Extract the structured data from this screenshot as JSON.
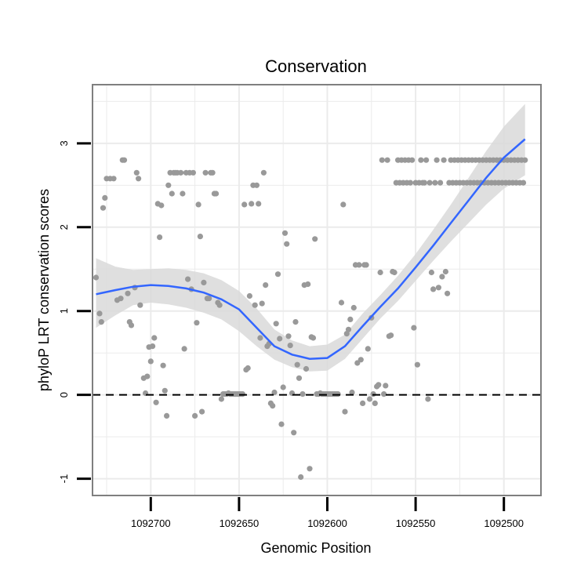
{
  "chart_data": {
    "type": "scatter",
    "title": "Conservation",
    "xlabel": "Genomic Position",
    "ylabel": "phyloP LRT conservation scores",
    "xlim": [
      1092733,
      1092479
    ],
    "ylim": [
      -1.2,
      3.7
    ],
    "x_reversed": true,
    "xticks": [
      1092700,
      1092650,
      1092600,
      1092550,
      1092500
    ],
    "xtick_labels": [
      "1092700",
      "1092650",
      "1092600",
      "1092550",
      "1092500"
    ],
    "yticks": [
      -1,
      0,
      1,
      2,
      3
    ],
    "ytick_labels": [
      "-1",
      "0",
      "1",
      "2",
      "3"
    ],
    "reference_line": {
      "y": 0,
      "style": "dashed"
    },
    "colors": {
      "points": "#999999",
      "smooth": "#3366ff",
      "band": "#d9d9d9",
      "frame": "#7f7f7f",
      "grid": "#ebebeb"
    },
    "points": [
      [
        1092731,
        1.4
      ],
      [
        1092729,
        0.97
      ],
      [
        1092728,
        0.87
      ],
      [
        1092727,
        2.23
      ],
      [
        1092726,
        2.35
      ],
      [
        1092725,
        2.58
      ],
      [
        1092723,
        2.58
      ],
      [
        1092721,
        2.58
      ],
      [
        1092719,
        1.13
      ],
      [
        1092717,
        1.15
      ],
      [
        1092716,
        2.8
      ],
      [
        1092715,
        2.8
      ],
      [
        1092713,
        1.21
      ],
      [
        1092712,
        0.87
      ],
      [
        1092711,
        0.83
      ],
      [
        1092709,
        1.28
      ],
      [
        1092708,
        2.65
      ],
      [
        1092707,
        2.58
      ],
      [
        1092706,
        1.07
      ],
      [
        1092704,
        0.2
      ],
      [
        1092703,
        0.02
      ],
      [
        1092702,
        0.22
      ],
      [
        1092701,
        0.57
      ],
      [
        1092700,
        0.4
      ],
      [
        1092699,
        0.58
      ],
      [
        1092698,
        0.68
      ],
      [
        1092697,
        -0.09
      ],
      [
        1092696,
        2.28
      ],
      [
        1092695,
        1.88
      ],
      [
        1092694,
        2.26
      ],
      [
        1092693,
        0.35
      ],
      [
        1092692,
        0.05
      ],
      [
        1092691,
        -0.25
      ],
      [
        1092690,
        2.5
      ],
      [
        1092689,
        2.65
      ],
      [
        1092688,
        2.4
      ],
      [
        1092687,
        2.65
      ],
      [
        1092686,
        2.65
      ],
      [
        1092685,
        2.65
      ],
      [
        1092683,
        2.65
      ],
      [
        1092682,
        2.4
      ],
      [
        1092681,
        0.55
      ],
      [
        1092680,
        2.65
      ],
      [
        1092679,
        1.38
      ],
      [
        1092678,
        2.65
      ],
      [
        1092677,
        1.26
      ],
      [
        1092676,
        2.65
      ],
      [
        1092675,
        -0.25
      ],
      [
        1092674,
        0.86
      ],
      [
        1092673,
        2.27
      ],
      [
        1092672,
        1.89
      ],
      [
        1092671,
        -0.2
      ],
      [
        1092670,
        1.34
      ],
      [
        1092669,
        2.65
      ],
      [
        1092668,
        1.15
      ],
      [
        1092667,
        1.15
      ],
      [
        1092666,
        2.65
      ],
      [
        1092665,
        2.65
      ],
      [
        1092664,
        2.4
      ],
      [
        1092663,
        2.4
      ],
      [
        1092662,
        1.1
      ],
      [
        1092661,
        1.07
      ],
      [
        1092660,
        -0.05
      ],
      [
        1092659,
        0.01
      ],
      [
        1092658,
        0.01
      ],
      [
        1092657,
        0.01
      ],
      [
        1092656,
        0.02
      ],
      [
        1092655,
        0.01
      ],
      [
        1092654,
        0.01
      ],
      [
        1092653,
        0.01
      ],
      [
        1092652,
        0.01
      ],
      [
        1092651,
        0.01
      ],
      [
        1092650,
        0.01
      ],
      [
        1092649,
        0.01
      ],
      [
        1092648,
        0.01
      ],
      [
        1092647,
        2.27
      ],
      [
        1092646,
        0.3
      ],
      [
        1092645,
        0.32
      ],
      [
        1092644,
        1.18
      ],
      [
        1092643,
        2.28
      ],
      [
        1092642,
        2.5
      ],
      [
        1092641,
        1.07
      ],
      [
        1092640,
        2.5
      ],
      [
        1092639,
        2.28
      ],
      [
        1092638,
        0.68
      ],
      [
        1092637,
        1.09
      ],
      [
        1092636,
        2.65
      ],
      [
        1092635,
        1.31
      ],
      [
        1092634,
        0.58
      ],
      [
        1092633,
        0.61
      ],
      [
        1092632,
        -0.1
      ],
      [
        1092631,
        -0.13
      ],
      [
        1092630,
        0.03
      ],
      [
        1092629,
        0.85
      ],
      [
        1092628,
        1.44
      ],
      [
        1092627,
        0.67
      ],
      [
        1092626,
        -0.35
      ],
      [
        1092625,
        0.09
      ],
      [
        1092624,
        1.93
      ],
      [
        1092623,
        1.8
      ],
      [
        1092622,
        0.7
      ],
      [
        1092621,
        0.59
      ],
      [
        1092620,
        0.02
      ],
      [
        1092619,
        -0.45
      ],
      [
        1092618,
        0.87
      ],
      [
        1092617,
        0.36
      ],
      [
        1092616,
        0.2
      ],
      [
        1092615,
        -0.98
      ],
      [
        1092614,
        0.01
      ],
      [
        1092613,
        1.31
      ],
      [
        1092612,
        0.31
      ],
      [
        1092611,
        1.32
      ],
      [
        1092610,
        -0.88
      ],
      [
        1092609,
        0.69
      ],
      [
        1092608,
        0.68
      ],
      [
        1092607,
        1.86
      ],
      [
        1092606,
        0.01
      ],
      [
        1092605,
        0.01
      ],
      [
        1092604,
        0.02
      ],
      [
        1092603,
        0.01
      ],
      [
        1092602,
        0.01
      ],
      [
        1092601,
        0.01
      ],
      [
        1092600,
        0.01
      ],
      [
        1092599,
        0.01
      ],
      [
        1092598,
        0.01
      ],
      [
        1092597,
        0.01
      ],
      [
        1092596,
        0.01
      ],
      [
        1092595,
        0.01
      ],
      [
        1092594,
        0.01
      ],
      [
        1092592,
        1.1
      ],
      [
        1092591,
        2.27
      ],
      [
        1092590,
        -0.2
      ],
      [
        1092589,
        0.73
      ],
      [
        1092588,
        0.78
      ],
      [
        1092587,
        0.9
      ],
      [
        1092586,
        0.03
      ],
      [
        1092585,
        1.04
      ],
      [
        1092584,
        1.55
      ],
      [
        1092583,
        0.38
      ],
      [
        1092582,
        1.55
      ],
      [
        1092581,
        0.42
      ],
      [
        1092580,
        -0.1
      ],
      [
        1092579,
        1.55
      ],
      [
        1092578,
        1.55
      ],
      [
        1092577,
        0.55
      ],
      [
        1092576,
        -0.05
      ],
      [
        1092575,
        0.92
      ],
      [
        1092574,
        0.01
      ],
      [
        1092573,
        -0.1
      ],
      [
        1092572,
        0.1
      ],
      [
        1092571,
        0.12
      ],
      [
        1092570,
        1.46
      ],
      [
        1092569,
        2.8
      ],
      [
        1092568,
        0.01
      ],
      [
        1092567,
        0.11
      ],
      [
        1092566,
        2.8
      ],
      [
        1092565,
        0.7
      ],
      [
        1092564,
        0.71
      ],
      [
        1092563,
        1.47
      ],
      [
        1092562,
        1.46
      ],
      [
        1092561,
        2.53
      ],
      [
        1092560,
        2.8
      ],
      [
        1092559,
        2.53
      ],
      [
        1092558,
        2.8
      ],
      [
        1092557,
        2.53
      ],
      [
        1092556,
        2.8
      ],
      [
        1092555,
        2.53
      ],
      [
        1092554,
        2.8
      ],
      [
        1092553,
        2.53
      ],
      [
        1092552,
        2.8
      ],
      [
        1092551,
        0.8
      ],
      [
        1092550,
        2.53
      ],
      [
        1092549,
        0.36
      ],
      [
        1092548,
        2.53
      ],
      [
        1092547,
        2.8
      ],
      [
        1092546,
        2.53
      ],
      [
        1092545,
        2.53
      ],
      [
        1092544,
        2.8
      ],
      [
        1092543,
        -0.05
      ],
      [
        1092542,
        2.53
      ],
      [
        1092541,
        1.46
      ],
      [
        1092540,
        1.26
      ],
      [
        1092539,
        2.53
      ],
      [
        1092538,
        2.8
      ],
      [
        1092537,
        1.28
      ],
      [
        1092536,
        2.53
      ],
      [
        1092535,
        1.41
      ],
      [
        1092534,
        2.8
      ],
      [
        1092533,
        1.47
      ],
      [
        1092532,
        1.21
      ],
      [
        1092531,
        2.53
      ],
      [
        1092530,
        2.8
      ],
      [
        1092529,
        2.53
      ],
      [
        1092528,
        2.8
      ],
      [
        1092527,
        2.53
      ],
      [
        1092526,
        2.8
      ],
      [
        1092525,
        2.53
      ],
      [
        1092524,
        2.8
      ],
      [
        1092523,
        2.53
      ],
      [
        1092522,
        2.8
      ],
      [
        1092521,
        2.53
      ],
      [
        1092520,
        2.8
      ],
      [
        1092519,
        2.53
      ],
      [
        1092518,
        2.8
      ],
      [
        1092517,
        2.53
      ],
      [
        1092516,
        2.8
      ],
      [
        1092515,
        2.53
      ],
      [
        1092514,
        2.8
      ],
      [
        1092513,
        2.53
      ],
      [
        1092512,
        2.8
      ],
      [
        1092511,
        2.53
      ],
      [
        1092510,
        2.8
      ],
      [
        1092509,
        2.53
      ],
      [
        1092508,
        2.8
      ],
      [
        1092507,
        2.53
      ],
      [
        1092506,
        2.8
      ],
      [
        1092505,
        2.53
      ],
      [
        1092504,
        2.8
      ],
      [
        1092503,
        2.53
      ],
      [
        1092502,
        2.8
      ],
      [
        1092501,
        2.53
      ],
      [
        1092500,
        2.8
      ],
      [
        1092499,
        2.53
      ],
      [
        1092498,
        2.8
      ],
      [
        1092497,
        2.53
      ],
      [
        1092496,
        2.8
      ],
      [
        1092495,
        2.53
      ],
      [
        1092494,
        2.8
      ],
      [
        1092493,
        2.53
      ],
      [
        1092492,
        2.8
      ],
      [
        1092491,
        2.53
      ],
      [
        1092490,
        2.8
      ],
      [
        1092489,
        2.53
      ],
      [
        1092488,
        2.8
      ]
    ],
    "smooth": {
      "x": [
        1092731,
        1092720,
        1092710,
        1092700,
        1092690,
        1092680,
        1092670,
        1092660,
        1092650,
        1092640,
        1092630,
        1092620,
        1092610,
        1092600,
        1092590,
        1092580,
        1092570,
        1092560,
        1092550,
        1092540,
        1092530,
        1092520,
        1092510,
        1092500,
        1092488
      ],
      "y": [
        1.2,
        1.25,
        1.29,
        1.31,
        1.3,
        1.27,
        1.22,
        1.14,
        1.02,
        0.8,
        0.58,
        0.48,
        0.43,
        0.44,
        0.58,
        0.82,
        1.05,
        1.27,
        1.52,
        1.78,
        2.05,
        2.32,
        2.59,
        2.83,
        3.05
      ],
      "lower": [
        0.8,
        0.95,
        1.07,
        1.1,
        1.08,
        1.04,
        0.98,
        0.9,
        0.76,
        0.58,
        0.42,
        0.33,
        0.28,
        0.29,
        0.43,
        0.67,
        0.91,
        1.12,
        1.36,
        1.6,
        1.83,
        2.05,
        2.27,
        2.46,
        2.62
      ],
      "upper": [
        1.63,
        1.53,
        1.49,
        1.5,
        1.51,
        1.49,
        1.45,
        1.37,
        1.24,
        1.03,
        0.78,
        0.65,
        0.58,
        0.6,
        0.72,
        0.97,
        1.19,
        1.42,
        1.68,
        1.97,
        2.27,
        2.59,
        2.91,
        3.2,
        3.47
      ]
    }
  }
}
